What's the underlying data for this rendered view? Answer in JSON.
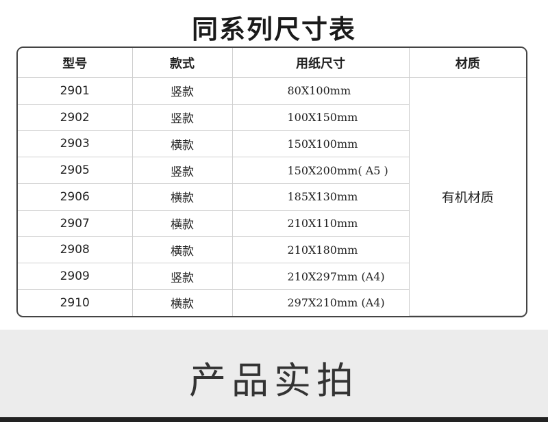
{
  "title": "同系列尺寸表",
  "table": {
    "headers": [
      "型号",
      "款式",
      "用纸尺寸",
      "材质"
    ],
    "material": "有机材质",
    "rows": [
      {
        "model": "2901",
        "style": "竖款",
        "size": "80X100mm"
      },
      {
        "model": "2902",
        "style": "竖款",
        "size": "100X150mm"
      },
      {
        "model": "2903",
        "style": "横款",
        "size": "150X100mm"
      },
      {
        "model": "2905",
        "style": "竖款",
        "size": "150X200mm( A5 )"
      },
      {
        "model": "2906",
        "style": "横款",
        "size": "185X130mm"
      },
      {
        "model": "2907",
        "style": "横款",
        "size": "210X110mm"
      },
      {
        "model": "2908",
        "style": "横款",
        "size": "210X180mm"
      },
      {
        "model": "2909",
        "style": "竖款",
        "size": "210X297mm (A4)"
      },
      {
        "model": "2910",
        "style": "横款",
        "size": "297X210mm (A4)"
      }
    ]
  },
  "section_title": "产品实拍"
}
